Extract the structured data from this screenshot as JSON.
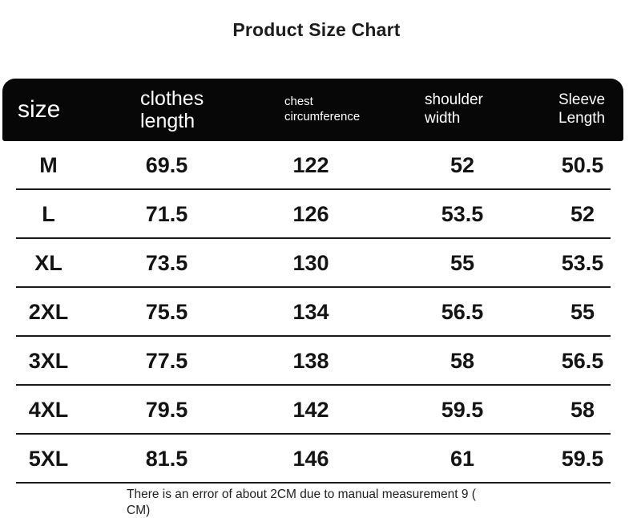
{
  "page": {
    "title": "Product Size Chart"
  },
  "chart_data": {
    "type": "table",
    "title": "Product Size Chart",
    "columns": [
      "size",
      "clothes length",
      "chest circumference",
      "shoulder width",
      "Sleeve Length"
    ],
    "rows": [
      [
        "M",
        "69.5",
        "122",
        "52",
        "50.5"
      ],
      [
        "L",
        "71.5",
        "126",
        "53.5",
        "52"
      ],
      [
        "XL",
        "73.5",
        "130",
        "55",
        "53.5"
      ],
      [
        "2XL",
        "75.5",
        "134",
        "56.5",
        "55"
      ],
      [
        "3XL",
        "77.5",
        "138",
        "58",
        "56.5"
      ],
      [
        "4XL",
        "79.5",
        "142",
        "59.5",
        "58"
      ],
      [
        "5XL",
        "81.5",
        "146",
        "61",
        "59.5"
      ]
    ],
    "unit_note_lines": [
      "There is an error of about 2CM due to manual measurement 9 (",
      "CM)"
    ]
  },
  "colors": {
    "background": "#ffffff",
    "header_bg": "#070707",
    "header_text": "#ffffff",
    "body_text": "#141414",
    "divider": "#1a1a1a"
  }
}
